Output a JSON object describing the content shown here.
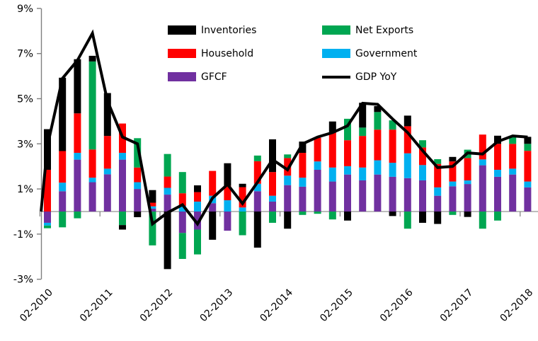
{
  "legend": {
    "items": [
      {
        "label": "Inventories",
        "series": "inv",
        "swatch": "rect"
      },
      {
        "label": "Net Exports",
        "series": "nx",
        "swatch": "rect"
      },
      {
        "label": "Household",
        "series": "hh",
        "swatch": "rect"
      },
      {
        "label": "Government",
        "series": "gov",
        "swatch": "rect"
      },
      {
        "label": "GFCF",
        "series": "gfcf",
        "swatch": "rect"
      },
      {
        "label": "GDP YoY",
        "series": "gdp",
        "swatch": "line"
      }
    ]
  },
  "colors": {
    "inv": "#000000",
    "nx": "#00A651",
    "hh": "#FF0000",
    "gov": "#00B0F0",
    "gfcf": "#7030A0",
    "gdp": "#000000",
    "zero_line": "#A6A6A6",
    "axis": "#7F7F7F",
    "tick_label": "#000000"
  },
  "y_axis": {
    "tick_labels": [
      "9%",
      "7%",
      "5%",
      "3%",
      "1%",
      "-1%",
      "-3%"
    ],
    "tick_values": [
      9,
      7,
      5,
      3,
      1,
      -1,
      -3
    ],
    "ylim": [
      -3,
      9
    ]
  },
  "x_axis": {
    "tick_labels": [
      "02-2010",
      "02-2011",
      "02-2012",
      "02-2013",
      "02-2014",
      "02-2015",
      "02-2016",
      "02-2017",
      "02-2018"
    ],
    "label_indices": [
      0,
      4,
      8,
      12,
      16,
      20,
      24,
      28,
      32
    ]
  },
  "chart_data": {
    "type": "bar",
    "subtype": "stacked-contributions-with-line",
    "title": "",
    "stack_order_note": "bottom to top: GFCF, Government, Household, Net Exports, Inventories",
    "legend_position": "top-center",
    "grid": "zero-line-only",
    "ylim": [
      -3,
      9
    ],
    "categories": [
      "02-2010",
      "03-2010",
      "04-2010",
      "01-2011",
      "02-2011",
      "03-2011",
      "04-2011",
      "01-2012",
      "02-2012",
      "03-2012",
      "04-2012",
      "01-2013",
      "02-2013",
      "03-2013",
      "04-2013",
      "01-2014",
      "02-2014",
      "03-2014",
      "04-2014",
      "01-2015",
      "02-2015",
      "03-2015",
      "04-2015",
      "01-2016",
      "02-2016",
      "03-2016",
      "04-2016",
      "01-2017",
      "02-2017",
      "03-2017",
      "04-2017",
      "01-2018",
      "02-2018"
    ],
    "bars": [
      {
        "pos": [
          [
            "hh",
            1.85
          ],
          [
            "inv",
            1.8
          ]
        ],
        "neg": [
          [
            "gfcf",
            -0.5
          ],
          [
            "gov",
            -0.12
          ],
          [
            "nx",
            -0.12
          ]
        ]
      },
      {
        "pos": [
          [
            "gfcf",
            0.9
          ],
          [
            "gov",
            0.38
          ],
          [
            "hh",
            1.4
          ],
          [
            "inv",
            3.25
          ]
        ],
        "neg": [
          [
            "nx",
            -0.7
          ]
        ]
      },
      {
        "pos": [
          [
            "gfcf",
            2.3
          ],
          [
            "gov",
            0.3
          ],
          [
            "hh",
            1.75
          ],
          [
            "inv",
            2.4
          ]
        ],
        "neg": [
          [
            "nx",
            -0.3
          ]
        ]
      },
      {
        "pos": [
          [
            "gfcf",
            1.3
          ],
          [
            "gov",
            0.2
          ],
          [
            "hh",
            1.25
          ],
          [
            "nx",
            3.9
          ],
          [
            "inv",
            0.25
          ]
        ],
        "neg": []
      },
      {
        "pos": [
          [
            "gfcf",
            1.65
          ],
          [
            "gov",
            0.25
          ],
          [
            "hh",
            1.45
          ],
          [
            "inv",
            1.9
          ]
        ],
        "neg": []
      },
      {
        "pos": [
          [
            "gfcf",
            2.3
          ],
          [
            "gov",
            0.3
          ],
          [
            "hh",
            1.3
          ]
        ],
        "neg": [
          [
            "nx",
            -0.6
          ],
          [
            "inv",
            -0.2
          ]
        ]
      },
      {
        "pos": [
          [
            "gfcf",
            1.0
          ],
          [
            "gov",
            0.3
          ],
          [
            "hh",
            0.65
          ],
          [
            "nx",
            1.3
          ]
        ],
        "neg": [
          [
            "inv",
            -0.25
          ]
        ]
      },
      {
        "pos": [
          [
            "gfcf",
            0.13
          ],
          [
            "gov",
            0.1
          ],
          [
            "hh",
            0.16
          ],
          [
            "inv",
            0.56
          ]
        ],
        "neg": [
          [
            "nx",
            -1.5
          ]
        ]
      },
      {
        "pos": [
          [
            "gfcf",
            0.75
          ],
          [
            "gov",
            0.3
          ],
          [
            "hh",
            0.5
          ],
          [
            "nx",
            1.0
          ]
        ],
        "neg": [
          [
            "inv",
            -2.55
          ]
        ]
      },
      {
        "pos": [
          [
            "gov",
            0.25
          ],
          [
            "hh",
            0.56
          ],
          [
            "nx",
            0.94
          ]
        ],
        "neg": [
          [
            "gfcf",
            -0.95
          ],
          [
            "nx",
            -1.15
          ]
        ]
      },
      {
        "pos": [
          [
            "gov",
            0.44
          ],
          [
            "hh",
            0.42
          ],
          [
            "inv",
            0.3
          ]
        ],
        "neg": [
          [
            "gfcf",
            -0.8
          ],
          [
            "nx",
            -1.1
          ]
        ]
      },
      {
        "pos": [
          [
            "gfcf",
            0.37
          ],
          [
            "gov",
            0.33
          ],
          [
            "hh",
            1.1
          ]
        ],
        "neg": [
          [
            "inv",
            -1.25
          ]
        ]
      },
      {
        "pos": [
          [
            "gov",
            0.5
          ],
          [
            "hh",
            0.64
          ],
          [
            "inv",
            1.0
          ]
        ],
        "neg": [
          [
            "gfcf",
            -0.85
          ]
        ]
      },
      {
        "pos": [
          [
            "gov",
            0.18
          ],
          [
            "hh",
            0.9
          ],
          [
            "inv",
            0.15
          ]
        ],
        "neg": [
          [
            "nx",
            -1.05
          ]
        ]
      },
      {
        "pos": [
          [
            "gfcf",
            0.9
          ],
          [
            "gov",
            0.33
          ],
          [
            "hh",
            1.0
          ],
          [
            "nx",
            0.25
          ]
        ],
        "neg": [
          [
            "inv",
            -1.6
          ]
        ]
      },
      {
        "pos": [
          [
            "gfcf",
            0.44
          ],
          [
            "gov",
            0.26
          ],
          [
            "hh",
            1.05
          ],
          [
            "inv",
            1.45
          ]
        ],
        "neg": [
          [
            "nx",
            -0.5
          ]
        ]
      },
      {
        "pos": [
          [
            "gfcf",
            1.17
          ],
          [
            "gov",
            0.42
          ],
          [
            "hh",
            0.78
          ],
          [
            "nx",
            0.16
          ]
        ],
        "neg": [
          [
            "inv",
            -0.76
          ]
        ]
      },
      {
        "pos": [
          [
            "gfcf",
            1.1
          ],
          [
            "gov",
            0.4
          ],
          [
            "hh",
            1.1
          ],
          [
            "inv",
            0.5
          ]
        ],
        "neg": [
          [
            "nx",
            -0.15
          ]
        ]
      },
      {
        "pos": [
          [
            "gfcf",
            1.85
          ],
          [
            "gov",
            0.37
          ],
          [
            "hh",
            1.05
          ]
        ],
        "neg": [
          [
            "nx",
            -0.1
          ]
        ]
      },
      {
        "pos": [
          [
            "gfcf",
            1.33
          ],
          [
            "gov",
            0.62
          ],
          [
            "hh",
            1.57
          ],
          [
            "inv",
            0.47
          ]
        ],
        "neg": [
          [
            "nx",
            -0.35
          ]
        ]
      },
      {
        "pos": [
          [
            "gfcf",
            1.64
          ],
          [
            "gov",
            0.37
          ],
          [
            "hh",
            1.15
          ],
          [
            "nx",
            0.95
          ]
        ],
        "neg": [
          [
            "inv",
            -0.4
          ]
        ]
      },
      {
        "pos": [
          [
            "gfcf",
            1.38
          ],
          [
            "gov",
            0.57
          ],
          [
            "hh",
            1.4
          ],
          [
            "nx",
            0.37
          ],
          [
            "inv",
            1.1
          ]
        ],
        "neg": []
      },
      {
        "pos": [
          [
            "gfcf",
            1.64
          ],
          [
            "gov",
            0.63
          ],
          [
            "hh",
            1.36
          ],
          [
            "nx",
            0.78
          ],
          [
            "inv",
            0.26
          ]
        ],
        "neg": []
      },
      {
        "pos": [
          [
            "gfcf",
            1.54
          ],
          [
            "gov",
            0.62
          ],
          [
            "hh",
            1.47
          ],
          [
            "nx",
            0.41
          ]
        ],
        "neg": [
          [
            "inv",
            -0.2
          ]
        ]
      },
      {
        "pos": [
          [
            "gfcf",
            1.48
          ],
          [
            "gov",
            1.1
          ],
          [
            "hh",
            1.2
          ],
          [
            "inv",
            0.47
          ]
        ],
        "neg": [
          [
            "nx",
            -0.76
          ]
        ]
      },
      {
        "pos": [
          [
            "gfcf",
            1.38
          ],
          [
            "gov",
            0.68
          ],
          [
            "hh",
            0.78
          ],
          [
            "nx",
            0.32
          ]
        ],
        "neg": [
          [
            "inv",
            -0.5
          ]
        ]
      },
      {
        "pos": [
          [
            "gfcf",
            0.7
          ],
          [
            "gov",
            0.37
          ],
          [
            "hh",
            1.04
          ],
          [
            "nx",
            0.21
          ]
        ],
        "neg": [
          [
            "inv",
            -0.55
          ]
        ]
      },
      {
        "pos": [
          [
            "gfcf",
            1.12
          ],
          [
            "gov",
            0.21
          ],
          [
            "hh",
            0.89
          ],
          [
            "inv",
            0.2
          ]
        ],
        "neg": [
          [
            "nx",
            -0.15
          ]
        ]
      },
      {
        "pos": [
          [
            "gfcf",
            1.22
          ],
          [
            "gov",
            0.16
          ],
          [
            "hh",
            0.99
          ],
          [
            "nx",
            0.37
          ]
        ],
        "neg": [
          [
            "inv",
            -0.24
          ]
        ]
      },
      {
        "pos": [
          [
            "gfcf",
            2.05
          ],
          [
            "gov",
            0.26
          ],
          [
            "hh",
            1.1
          ]
        ],
        "neg": [
          [
            "nx",
            -0.76
          ]
        ]
      },
      {
        "pos": [
          [
            "gfcf",
            1.54
          ],
          [
            "gov",
            0.31
          ],
          [
            "hh",
            1.15
          ],
          [
            "inv",
            0.36
          ]
        ],
        "neg": [
          [
            "nx",
            -0.4
          ]
        ]
      },
      {
        "pos": [
          [
            "gfcf",
            1.64
          ],
          [
            "gov",
            0.26
          ],
          [
            "hh",
            1.1
          ],
          [
            "nx",
            0.3
          ]
        ],
        "neg": []
      },
      {
        "pos": [
          [
            "gfcf",
            1.07
          ],
          [
            "gov",
            0.26
          ],
          [
            "hh",
            1.36
          ],
          [
            "nx",
            0.31
          ],
          [
            "inv",
            0.31
          ]
        ],
        "neg": []
      }
    ],
    "gdp_yoy": [
      2.9,
      5.9,
      6.7,
      7.9,
      4.9,
      3.3,
      3.0,
      -0.55,
      -0.05,
      0.3,
      -0.55,
      0.6,
      1.2,
      0.35,
      1.3,
      2.3,
      1.85,
      3.0,
      3.3,
      3.5,
      3.8,
      4.8,
      4.75,
      4.1,
      3.5,
      2.7,
      1.95,
      2.0,
      2.6,
      2.55,
      3.1,
      3.35,
      3.3
    ],
    "line_lead_in_value": 0.0
  }
}
